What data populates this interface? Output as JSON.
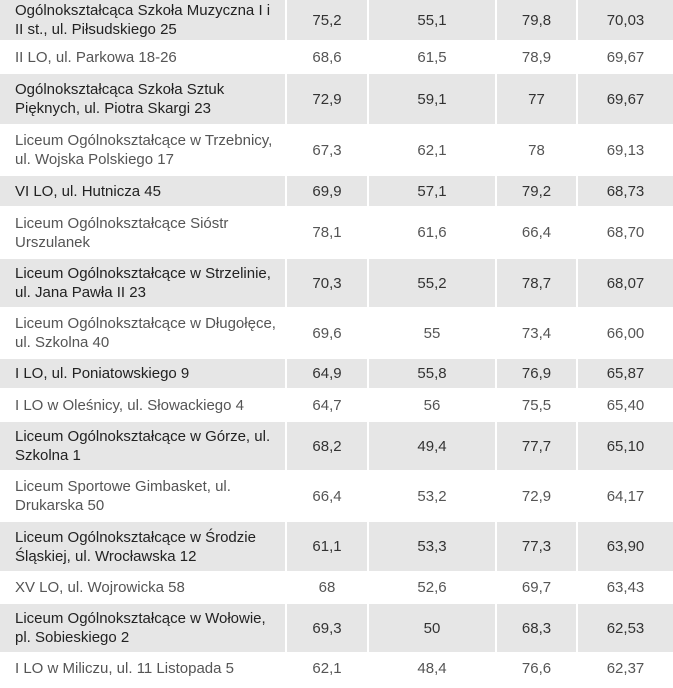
{
  "table": {
    "rows": [
      {
        "name": "Ogólnokształcąca Szkoła Muzyczna I i II st., ul. Piłsudskiego 25",
        "v1": "75,2",
        "v2": "55,1",
        "v3": "79,8",
        "avg": "70,03"
      },
      {
        "name": "II LO, ul. Parkowa 18-26",
        "v1": "68,6",
        "v2": "61,5",
        "v3": "78,9",
        "avg": "69,67"
      },
      {
        "name": "Ogólnokształcąca Szkoła Sztuk Pięknych, ul. Piotra Skargi 23",
        "v1": "72,9",
        "v2": "59,1",
        "v3": "77",
        "avg": "69,67"
      },
      {
        "name": "Liceum Ogólnokształcące w Trzebnicy, ul. Wojska Polskiego 17",
        "v1": "67,3",
        "v2": "62,1",
        "v3": "78",
        "avg": "69,13"
      },
      {
        "name": "VI LO, ul. Hutnicza 45",
        "v1": "69,9",
        "v2": "57,1",
        "v3": "79,2",
        "avg": "68,73"
      },
      {
        "name": "Liceum Ogólnokształcące Sióstr Urszulanek",
        "v1": "78,1",
        "v2": "61,6",
        "v3": "66,4",
        "avg": "68,70"
      },
      {
        "name": "Liceum Ogólnokształcące w Strzelinie, ul. Jana Pawła II 23",
        "v1": "70,3",
        "v2": "55,2",
        "v3": "78,7",
        "avg": "68,07"
      },
      {
        "name": "Liceum Ogólnokształcące w Długołęce, ul. Szkolna 40",
        "v1": "69,6",
        "v2": "55",
        "v3": "73,4",
        "avg": "66,00"
      },
      {
        "name": "I LO, ul. Poniatowskiego 9",
        "v1": "64,9",
        "v2": "55,8",
        "v3": "76,9",
        "avg": "65,87"
      },
      {
        "name": "I LO w Oleśnicy, ul. Słowackiego 4",
        "v1": "64,7",
        "v2": "56",
        "v3": "75,5",
        "avg": "65,40"
      },
      {
        "name": "Liceum Ogólnokształcące w Górze, ul. Szkolna 1",
        "v1": "68,2",
        "v2": "49,4",
        "v3": "77,7",
        "avg": "65,10"
      },
      {
        "name": "Liceum Sportowe Gimbasket, ul. Drukarska 50",
        "v1": "66,4",
        "v2": "53,2",
        "v3": "72,9",
        "avg": "64,17"
      },
      {
        "name": "Liceum Ogólnokształcące w Środzie Śląskiej, ul. Wrocławska 12",
        "v1": "61,1",
        "v2": "53,3",
        "v3": "77,3",
        "avg": "63,90"
      },
      {
        "name": "XV LO, ul. Wojrowicka 58",
        "v1": "68",
        "v2": "52,6",
        "v3": "69,7",
        "avg": "63,43"
      },
      {
        "name": "Liceum Ogólnokształcące w Wołowie, pl. Sobieskiego 2",
        "v1": "69,3",
        "v2": "50",
        "v3": "68,3",
        "avg": "62,53"
      },
      {
        "name": "I LO w Miliczu, ul. 11 Listopada 5",
        "v1": "62,1",
        "v2": "48,4",
        "v3": "76,6",
        "avg": "62,37"
      }
    ]
  }
}
